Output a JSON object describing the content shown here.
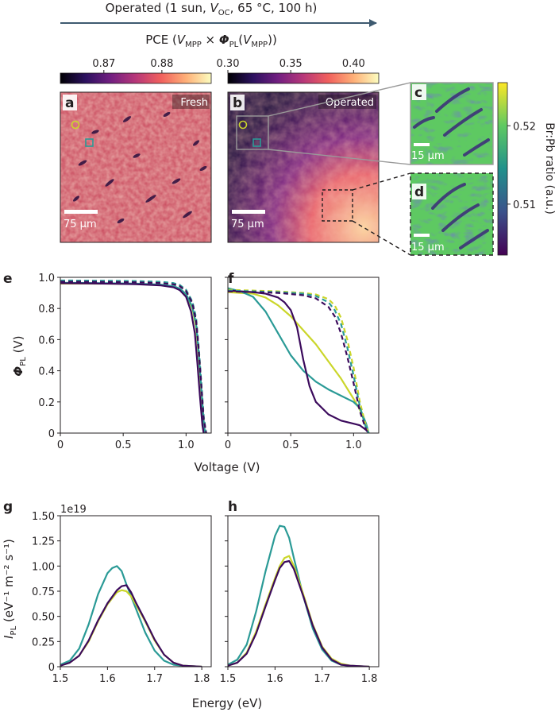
{
  "colors": {
    "arrow": "#3e5a70",
    "yellow": "#cbd62a",
    "teal": "#2a9a96",
    "purple": "#3b0a5c",
    "magma_stops": [
      "#000004",
      "#2c115f",
      "#721f81",
      "#b73779",
      "#f1605d",
      "#feb078",
      "#fcfdbf"
    ],
    "viridis_stops": [
      "#440154",
      "#3b528b",
      "#21918c",
      "#5ec962",
      "#fde725"
    ]
  },
  "header": {
    "arrow_label_pre": "Operated (1 sun, ",
    "arrow_label_voc_main": "V",
    "arrow_label_voc_sub": "OC",
    "arrow_label_post": ", 65 °C, 100 h)",
    "pce_prefix": "PCE (",
    "pce_v": "V",
    "pce_v_sub": "MPP",
    "pce_times": " × ",
    "pce_phi": "Φ",
    "pce_phi_sub": "PL",
    "pce_paren_open": "(",
    "pce_v2": "V",
    "pce_v2_sub": "MPP",
    "pce_suffix": "))"
  },
  "colorbar_fresh": {
    "ticks": [
      "0.87",
      "0.88"
    ],
    "tick_values": [
      0.87,
      0.88
    ],
    "range": [
      0.8625,
      0.8885
    ]
  },
  "colorbar_operated": {
    "ticks": [
      "0.30",
      "0.35",
      "0.40"
    ],
    "tick_values": [
      0.3,
      0.35,
      0.4
    ],
    "range": [
      0.3,
      0.42
    ]
  },
  "maps": {
    "a": {
      "letter": "a",
      "tag": "Fresh",
      "scale": "75 µm"
    },
    "b": {
      "letter": "b",
      "tag": "Operated",
      "scale": "75 µm"
    },
    "c": {
      "letter": "c",
      "scale": "15 µm"
    },
    "d": {
      "letter": "d",
      "scale": "15 µm"
    }
  },
  "brpb_colorbar": {
    "label": "Br:Pb ratio (a.u.)",
    "ticks": [
      "0.52",
      "0.51"
    ],
    "tick_values": [
      0.52,
      0.51
    ],
    "range": [
      0.5035,
      0.5255
    ]
  },
  "chart_data": [
    {
      "panel": "e",
      "type": "line",
      "xlabel": "",
      "ylabel_main": "Φ",
      "ylabel_sub": "PL",
      "ylabel_unit": " (V)",
      "xlim": [
        0,
        1.2
      ],
      "ylim": [
        0,
        1.0
      ],
      "x_ticks": [
        0,
        0.5,
        1.0
      ],
      "x_tick_labels": [
        "0",
        "0.5",
        "1.0"
      ],
      "y_ticks": [
        0,
        0.2,
        0.4,
        0.6,
        0.8,
        1.0
      ],
      "y_tick_labels": [
        "0",
        "0.2",
        "0.4",
        "0.6",
        "0.8",
        "1.0"
      ],
      "series": [
        {
          "name": "yellow solid",
          "color": "yellow",
          "dashed": false,
          "x": [
            0,
            0.2,
            0.4,
            0.6,
            0.8,
            0.9,
            0.95,
            1.0,
            1.05,
            1.08,
            1.1,
            1.12,
            1.14,
            1.15
          ],
          "y": [
            0.96,
            0.96,
            0.959,
            0.957,
            0.95,
            0.94,
            0.925,
            0.89,
            0.8,
            0.68,
            0.5,
            0.28,
            0.06,
            0
          ]
        },
        {
          "name": "teal solid",
          "color": "teal",
          "dashed": false,
          "x": [
            0,
            0.2,
            0.4,
            0.6,
            0.8,
            0.9,
            0.95,
            1.0,
            1.05,
            1.08,
            1.1,
            1.12,
            1.14,
            1.15
          ],
          "y": [
            0.965,
            0.964,
            0.962,
            0.96,
            0.953,
            0.943,
            0.928,
            0.893,
            0.81,
            0.7,
            0.52,
            0.3,
            0.08,
            0
          ]
        },
        {
          "name": "purple solid",
          "color": "purple",
          "dashed": false,
          "x": [
            0,
            0.2,
            0.4,
            0.6,
            0.8,
            0.9,
            0.95,
            1.0,
            1.04,
            1.07,
            1.09,
            1.11,
            1.13,
            1.14
          ],
          "y": [
            0.962,
            0.961,
            0.959,
            0.956,
            0.948,
            0.936,
            0.918,
            0.875,
            0.78,
            0.64,
            0.45,
            0.24,
            0.05,
            0
          ]
        },
        {
          "name": "yellow dashed",
          "color": "yellow",
          "dashed": true,
          "x": [
            0,
            0.2,
            0.4,
            0.6,
            0.8,
            0.9,
            0.95,
            1.0,
            1.05,
            1.08,
            1.1,
            1.12,
            1.14,
            1.16
          ],
          "y": [
            0.975,
            0.974,
            0.973,
            0.971,
            0.966,
            0.958,
            0.946,
            0.915,
            0.84,
            0.73,
            0.55,
            0.33,
            0.1,
            0
          ]
        },
        {
          "name": "teal dashed",
          "color": "teal",
          "dashed": true,
          "x": [
            0,
            0.2,
            0.4,
            0.6,
            0.8,
            0.9,
            0.95,
            1.0,
            1.05,
            1.08,
            1.1,
            1.12,
            1.14,
            1.16
          ],
          "y": [
            0.98,
            0.979,
            0.978,
            0.976,
            0.971,
            0.963,
            0.951,
            0.92,
            0.845,
            0.74,
            0.56,
            0.34,
            0.11,
            0
          ]
        },
        {
          "name": "purple dashed",
          "color": "purple",
          "dashed": true,
          "x": [
            0,
            0.2,
            0.4,
            0.6,
            0.8,
            0.9,
            0.95,
            1.0,
            1.05,
            1.08,
            1.1,
            1.12,
            1.14,
            1.16
          ],
          "y": [
            0.972,
            0.971,
            0.97,
            0.968,
            0.963,
            0.955,
            0.943,
            0.912,
            0.835,
            0.72,
            0.54,
            0.32,
            0.09,
            0
          ]
        }
      ]
    },
    {
      "panel": "f",
      "type": "line",
      "xlabel": "",
      "xlim": [
        0,
        1.2
      ],
      "ylim": [
        0,
        1.0
      ],
      "x_ticks": [
        0,
        0.5,
        1.0
      ],
      "x_tick_labels": [
        "0",
        "0.5",
        "1.0"
      ],
      "y_ticks": [
        0,
        0.2,
        0.4,
        0.6,
        0.8,
        1.0
      ],
      "y_tick_labels": [],
      "series": [
        {
          "name": "yellow solid",
          "color": "yellow",
          "dashed": false,
          "x": [
            0,
            0.1,
            0.2,
            0.3,
            0.4,
            0.5,
            0.6,
            0.7,
            0.8,
            0.9,
            1.0,
            1.05,
            1.1,
            1.12
          ],
          "y": [
            0.905,
            0.9,
            0.895,
            0.87,
            0.82,
            0.75,
            0.66,
            0.57,
            0.46,
            0.35,
            0.22,
            0.15,
            0.05,
            0
          ]
        },
        {
          "name": "teal solid",
          "color": "teal",
          "dashed": false,
          "x": [
            0,
            0.1,
            0.2,
            0.3,
            0.4,
            0.5,
            0.6,
            0.7,
            0.8,
            0.9,
            1.0,
            1.05,
            1.1,
            1.12
          ],
          "y": [
            0.93,
            0.91,
            0.875,
            0.78,
            0.64,
            0.5,
            0.4,
            0.33,
            0.28,
            0.24,
            0.2,
            0.16,
            0.06,
            0
          ]
        },
        {
          "name": "purple solid",
          "color": "purple",
          "dashed": false,
          "x": [
            0,
            0.2,
            0.3,
            0.4,
            0.45,
            0.5,
            0.55,
            0.6,
            0.65,
            0.7,
            0.8,
            0.9,
            1.0,
            1.05,
            1.1,
            1.12
          ],
          "y": [
            0.915,
            0.905,
            0.895,
            0.87,
            0.84,
            0.79,
            0.68,
            0.47,
            0.3,
            0.2,
            0.12,
            0.08,
            0.06,
            0.05,
            0.02,
            0
          ]
        },
        {
          "name": "yellow dashed",
          "color": "yellow",
          "dashed": true,
          "x": [
            0,
            0.2,
            0.4,
            0.6,
            0.7,
            0.8,
            0.85,
            0.9,
            0.95,
            1.0,
            1.05,
            1.1,
            1.12
          ],
          "y": [
            0.92,
            0.915,
            0.91,
            0.9,
            0.89,
            0.86,
            0.82,
            0.74,
            0.6,
            0.42,
            0.2,
            0.04,
            0
          ]
        },
        {
          "name": "teal dashed",
          "color": "teal",
          "dashed": true,
          "x": [
            0,
            0.2,
            0.4,
            0.6,
            0.7,
            0.8,
            0.85,
            0.9,
            0.95,
            1.0,
            1.05,
            1.1,
            1.12
          ],
          "y": [
            0.915,
            0.91,
            0.905,
            0.895,
            0.88,
            0.84,
            0.79,
            0.7,
            0.55,
            0.37,
            0.17,
            0.03,
            0
          ]
        },
        {
          "name": "purple dashed",
          "color": "purple",
          "dashed": true,
          "x": [
            0,
            0.2,
            0.4,
            0.6,
            0.7,
            0.8,
            0.85,
            0.9,
            0.95,
            1.0,
            1.05,
            1.1,
            1.12
          ],
          "y": [
            0.91,
            0.905,
            0.9,
            0.885,
            0.865,
            0.81,
            0.75,
            0.64,
            0.49,
            0.32,
            0.14,
            0.02,
            0
          ]
        }
      ]
    },
    {
      "panel": "g",
      "type": "line",
      "offset_text": "1e19",
      "ylabel_main": "I",
      "ylabel_sub": "PL",
      "ylabel_unit": " (eV⁻¹ m⁻² s⁻¹)",
      "xlim": [
        1.5,
        1.82
      ],
      "ylim": [
        0,
        1.5
      ],
      "x_ticks": [
        1.5,
        1.6,
        1.7,
        1.8
      ],
      "x_tick_labels": [
        "1.5",
        "1.6",
        "1.7",
        "1.8"
      ],
      "y_ticks": [
        0,
        0.25,
        0.5,
        0.75,
        1.0,
        1.25,
        1.5
      ],
      "y_tick_labels": [
        "0",
        "0.25",
        "0.50",
        "0.75",
        "1.00",
        "1.25",
        "1.50"
      ],
      "series": [
        {
          "name": "teal",
          "color": "teal",
          "x": [
            1.5,
            1.52,
            1.54,
            1.56,
            1.58,
            1.6,
            1.61,
            1.62,
            1.63,
            1.64,
            1.66,
            1.68,
            1.7,
            1.72,
            1.74,
            1.76,
            1.78,
            1.8
          ],
          "y": [
            0.02,
            0.06,
            0.18,
            0.42,
            0.72,
            0.93,
            0.98,
            1.0,
            0.95,
            0.82,
            0.58,
            0.34,
            0.16,
            0.06,
            0.02,
            0.01,
            0.005,
            0
          ]
        },
        {
          "name": "yellow",
          "color": "yellow",
          "x": [
            1.5,
            1.52,
            1.54,
            1.56,
            1.58,
            1.6,
            1.62,
            1.63,
            1.64,
            1.65,
            1.66,
            1.68,
            1.7,
            1.72,
            1.74,
            1.76,
            1.78,
            1.8
          ],
          "y": [
            0.01,
            0.04,
            0.11,
            0.25,
            0.45,
            0.62,
            0.74,
            0.76,
            0.75,
            0.7,
            0.62,
            0.45,
            0.26,
            0.12,
            0.04,
            0.01,
            0.005,
            0
          ]
        },
        {
          "name": "purple",
          "color": "purple",
          "x": [
            1.5,
            1.52,
            1.54,
            1.56,
            1.58,
            1.6,
            1.62,
            1.63,
            1.64,
            1.65,
            1.66,
            1.68,
            1.7,
            1.72,
            1.74,
            1.76,
            1.78,
            1.8
          ],
          "y": [
            0.01,
            0.04,
            0.11,
            0.26,
            0.46,
            0.63,
            0.76,
            0.8,
            0.81,
            0.74,
            0.64,
            0.46,
            0.27,
            0.12,
            0.04,
            0.01,
            0.005,
            0
          ]
        }
      ]
    },
    {
      "panel": "h",
      "type": "line",
      "xlim": [
        1.5,
        1.82
      ],
      "ylim": [
        0,
        1.5
      ],
      "x_ticks": [
        1.5,
        1.6,
        1.7,
        1.8
      ],
      "x_tick_labels": [
        "1.5",
        "1.6",
        "1.7",
        "1.8"
      ],
      "y_ticks": [
        0,
        0.25,
        0.5,
        0.75,
        1.0,
        1.25,
        1.5
      ],
      "y_tick_labels": [],
      "series": [
        {
          "name": "teal",
          "color": "teal",
          "x": [
            1.5,
            1.52,
            1.54,
            1.56,
            1.58,
            1.6,
            1.61,
            1.62,
            1.63,
            1.64,
            1.66,
            1.68,
            1.7,
            1.72,
            1.74,
            1.76,
            1.78,
            1.8
          ],
          "y": [
            0.02,
            0.07,
            0.22,
            0.55,
            0.95,
            1.3,
            1.4,
            1.39,
            1.28,
            1.08,
            0.7,
            0.38,
            0.17,
            0.06,
            0.02,
            0.01,
            0.005,
            0
          ]
        },
        {
          "name": "yellow",
          "color": "yellow",
          "x": [
            1.5,
            1.52,
            1.54,
            1.56,
            1.58,
            1.6,
            1.61,
            1.62,
            1.63,
            1.64,
            1.66,
            1.68,
            1.7,
            1.72,
            1.74,
            1.76,
            1.78,
            1.8
          ],
          "y": [
            0.01,
            0.04,
            0.14,
            0.35,
            0.62,
            0.88,
            1.0,
            1.08,
            1.1,
            1.0,
            0.72,
            0.42,
            0.2,
            0.08,
            0.03,
            0.01,
            0.005,
            0
          ]
        },
        {
          "name": "purple",
          "color": "purple",
          "x": [
            1.5,
            1.52,
            1.54,
            1.56,
            1.58,
            1.6,
            1.61,
            1.62,
            1.63,
            1.64,
            1.66,
            1.68,
            1.7,
            1.72,
            1.74,
            1.76,
            1.78,
            1.8
          ],
          "y": [
            0.01,
            0.04,
            0.13,
            0.33,
            0.6,
            0.86,
            0.98,
            1.04,
            1.05,
            0.97,
            0.7,
            0.41,
            0.19,
            0.07,
            0.02,
            0.01,
            0.005,
            0
          ]
        }
      ]
    }
  ],
  "x_axis_labels": {
    "voltage": "Voltage (V)",
    "energy": "Energy (eV)"
  }
}
